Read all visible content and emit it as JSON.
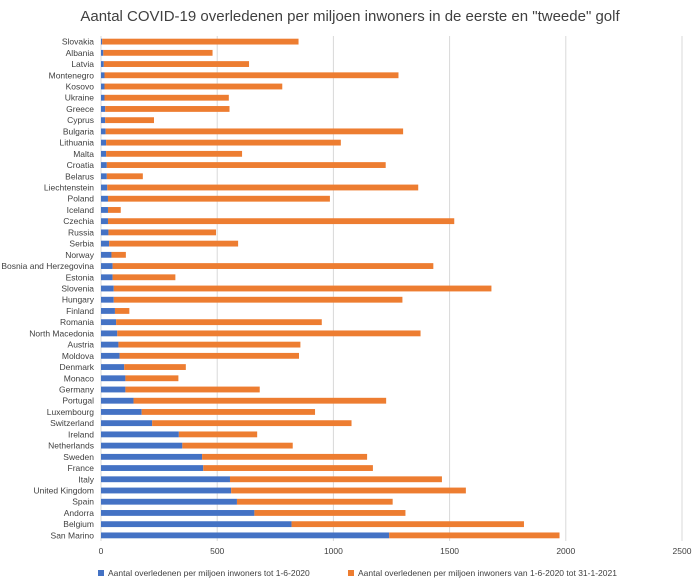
{
  "chart_data": {
    "type": "bar",
    "orientation": "horizontal",
    "stacked": true,
    "title": "Aantal COVID-19 overledenen per miljoen inwoners in de eerste en \"tweede\" golf",
    "xlim": [
      0,
      2500
    ],
    "x_ticks": [
      0,
      500,
      1000,
      1500,
      2000,
      2500
    ],
    "grid": true,
    "legend_position": "bottom",
    "colors": [
      "#4472c4",
      "#ed7d31"
    ],
    "categories": [
      "Slovakia",
      "Albania",
      "Latvia",
      "Montenegro",
      "Kosovo",
      "Ukraine",
      "Greece",
      "Cyprus",
      "Bulgaria",
      "Lithuania",
      "Malta",
      "Croatia",
      "Belarus",
      "Liechtenstein",
      "Poland",
      "Iceland",
      "Czechia",
      "Russia",
      "Serbia",
      "Norway",
      "Bosnia and Herzegovina",
      "Estonia",
      "Slovenia",
      "Hungary",
      "Finland",
      "Romania",
      "North Macedonia",
      "Austria",
      "Moldova",
      "Denmark",
      "Monaco",
      "Germany",
      "Portugal",
      "Luxembourg",
      "Switzerland",
      "Ireland",
      "Netherlands",
      "Sweden",
      "France",
      "Italy",
      "United Kingdom",
      "Spain",
      "Andorra",
      "Belgium",
      "San Marino"
    ],
    "series": [
      {
        "name": "Aantal overledenen per miljoen inwoners tot 1-6-2020",
        "values": [
          5,
          10,
          12,
          15,
          15,
          15,
          18,
          18,
          20,
          22,
          22,
          25,
          25,
          27,
          30,
          30,
          30,
          32,
          35,
          45,
          50,
          50,
          55,
          55,
          60,
          65,
          70,
          75,
          80,
          100,
          105,
          105,
          140,
          175,
          220,
          335,
          350,
          435,
          440,
          555,
          560,
          585,
          660,
          820,
          1240
        ]
      },
      {
        "name": "Aantal overledenen per miljoen inwoners van 1-6-2020 tot 31-1-2021",
        "values": [
          845,
          470,
          625,
          1265,
          765,
          535,
          535,
          210,
          1280,
          1010,
          585,
          1200,
          155,
          1338,
          955,
          55,
          1490,
          463,
          555,
          62,
          1380,
          270,
          1625,
          1242,
          62,
          885,
          1305,
          783,
          772,
          265,
          228,
          578,
          1087,
          746,
          858,
          337,
          475,
          710,
          730,
          912,
          1010,
          670,
          650,
          1000,
          733
        ]
      }
    ]
  }
}
